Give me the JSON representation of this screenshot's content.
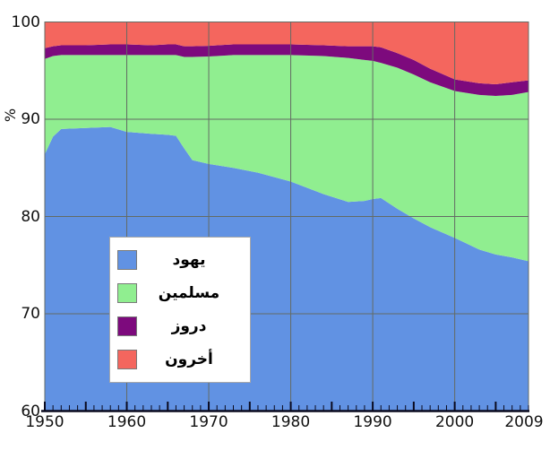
{
  "figure": {
    "background": "#ffffff",
    "grid_color": "#646b64",
    "plot_border_color": "#646b64",
    "axis_color": "#0a0a1e",
    "tick_color": "#0a0a1e",
    "label_color": "#111111",
    "legend_border_color": "#a8a8a8",
    "legend_background": "#ffffff"
  },
  "chart_data": {
    "type": "area",
    "stacked": true,
    "title": "",
    "xlabel": "",
    "ylabel": "%",
    "xlim": [
      1950,
      2009
    ],
    "ylim": [
      60,
      100
    ],
    "grid": true,
    "legend_position": "inside-lower-left",
    "x_tick_labels": [
      "1950",
      "1960",
      "1970",
      "1980",
      "1990",
      "2000",
      "2009"
    ],
    "x_tick_values": [
      1950,
      1960,
      1970,
      1980,
      1990,
      2000,
      2009
    ],
    "y_tick_labels": [
      "60",
      "70",
      "80",
      "90",
      "100"
    ],
    "y_tick_values": [
      60,
      70,
      80,
      90,
      100
    ],
    "grid_x_values": [
      1960,
      1970,
      1980,
      1990,
      2000
    ],
    "grid_y_values": [
      70,
      80,
      90
    ],
    "minor_tick_every_years": 1,
    "major_tick_every_years": 5,
    "x": [
      1950,
      1951,
      1952,
      1955,
      1958,
      1960,
      1963,
      1965,
      1966,
      1967,
      1968,
      1970,
      1973,
      1976,
      1980,
      1984,
      1987,
      1989,
      1990,
      1991,
      1993,
      1995,
      1997,
      2000,
      2003,
      2005,
      2007,
      2009
    ],
    "value_unit": "percent",
    "series": [
      {
        "id": "jews",
        "name": "يهود",
        "color": "#6192e3",
        "values": [
          86.4,
          88.2,
          89.0,
          89.1,
          89.2,
          88.7,
          88.5,
          88.4,
          88.3,
          87.0,
          85.8,
          85.4,
          85.0,
          84.5,
          83.6,
          82.3,
          81.5,
          81.6,
          81.8,
          81.9,
          80.8,
          79.8,
          78.9,
          77.8,
          76.6,
          76.1,
          75.8,
          75.4
        ]
      },
      {
        "id": "muslims",
        "name": "مسلمين",
        "color": "#90ee90",
        "values": [
          9.8,
          8.3,
          7.6,
          7.5,
          7.4,
          7.9,
          8.1,
          8.2,
          8.3,
          9.4,
          10.6,
          11.05,
          11.6,
          12.1,
          13.0,
          14.2,
          14.8,
          14.5,
          14.2,
          13.9,
          14.5,
          14.8,
          14.9,
          15.1,
          15.9,
          16.3,
          16.7,
          17.4
        ]
      },
      {
        "id": "druze",
        "name": "دروز",
        "color": "#7d0a7d",
        "values": [
          1.1,
          1.0,
          1.0,
          1.0,
          1.1,
          1.1,
          1.0,
          1.1,
          1.1,
          1.1,
          1.1,
          1.1,
          1.1,
          1.1,
          1.1,
          1.1,
          1.2,
          1.4,
          1.5,
          1.6,
          1.5,
          1.5,
          1.4,
          1.2,
          1.2,
          1.2,
          1.3,
          1.2
        ]
      },
      {
        "id": "others",
        "name": "أخرون",
        "color": "#f4665e",
        "values": [
          2.7,
          2.5,
          2.4,
          2.4,
          2.3,
          2.3,
          2.4,
          2.3,
          2.3,
          2.5,
          2.5,
          2.45,
          2.3,
          2.3,
          2.3,
          2.4,
          2.5,
          2.5,
          2.5,
          2.6,
          3.2,
          3.9,
          4.8,
          5.9,
          6.3,
          6.4,
          6.2,
          6.0
        ]
      }
    ]
  }
}
